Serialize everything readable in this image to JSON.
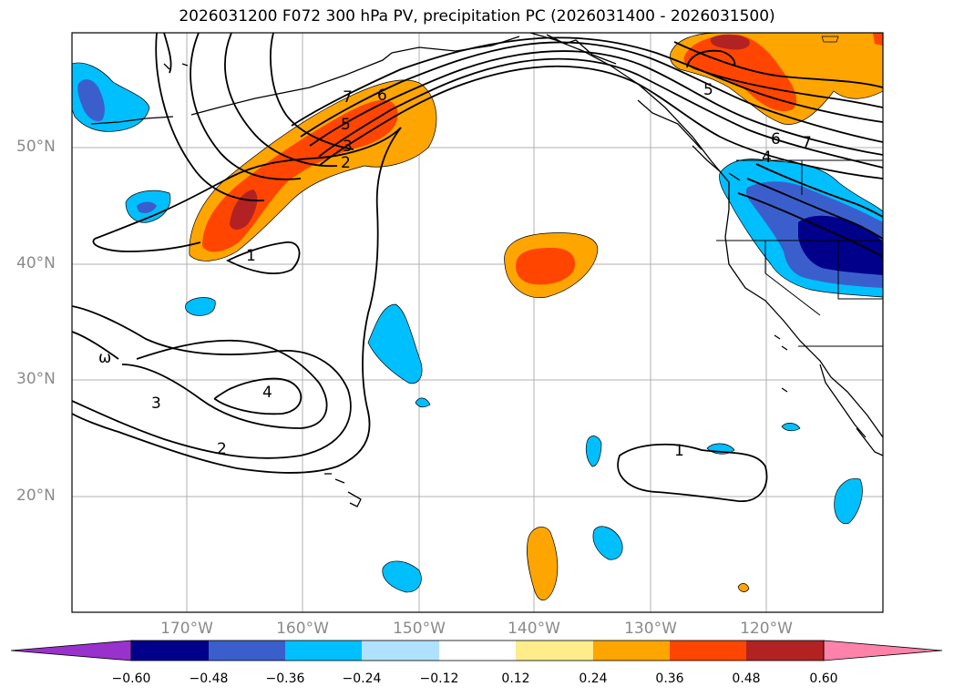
{
  "title": "2026031200 F072 300 hPa PV, precipitation PC (2026031400 - 2026031500)",
  "lat_labels": [
    "50°N",
    "40°N",
    "30°N",
    "20°N"
  ],
  "lon_labels": [
    "170°W",
    "160°W",
    "150°W",
    "140°W",
    "130°W",
    "120°W"
  ],
  "contour_labels": [
    "7",
    "6",
    "5",
    "3",
    "2",
    "1",
    "ω",
    "3",
    "4",
    "2",
    "1",
    "5",
    "6",
    "4",
    "7"
  ],
  "colorbar": {
    "ticks": [
      "−0.60",
      "−0.48",
      "−0.36",
      "−0.24",
      "−0.12",
      "0.12",
      "0.24",
      "0.36",
      "0.48",
      "0.60"
    ],
    "colors": [
      "#9932cc",
      "#00008b",
      "#3a5fcd",
      "#00bfff",
      "#b0e2ff",
      "#ffffff",
      "#ffec8b",
      "#ffa500",
      "#ff4500",
      "#b22222",
      "#ff82ab"
    ]
  }
}
